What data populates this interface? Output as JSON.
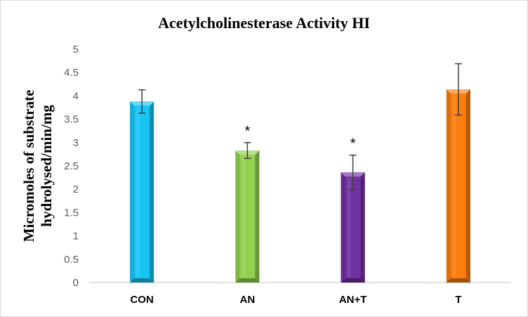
{
  "chart_data": {
    "type": "bar",
    "title": "Acetylcholinesterase Activity HI",
    "ylabel_lines": [
      "Micromoles of substrate",
      "hydrolysed/min/mg"
    ],
    "xlabel": "",
    "categories": [
      "CON",
      "AN",
      "AN+T",
      "T"
    ],
    "values": [
      3.88,
      2.83,
      2.36,
      4.14
    ],
    "errors": [
      0.25,
      0.17,
      0.37,
      0.55
    ],
    "annotations": [
      "",
      "*",
      "*",
      ""
    ],
    "colors": [
      "#19c3f4",
      "#92d050",
      "#7030a0",
      "#fa7d0f"
    ],
    "ylim": [
      0,
      5
    ],
    "yticks": [
      0,
      0.5,
      1,
      1.5,
      2,
      2.5,
      3,
      3.5,
      4,
      4.5,
      5
    ],
    "grid": false,
    "legend": "none"
  }
}
